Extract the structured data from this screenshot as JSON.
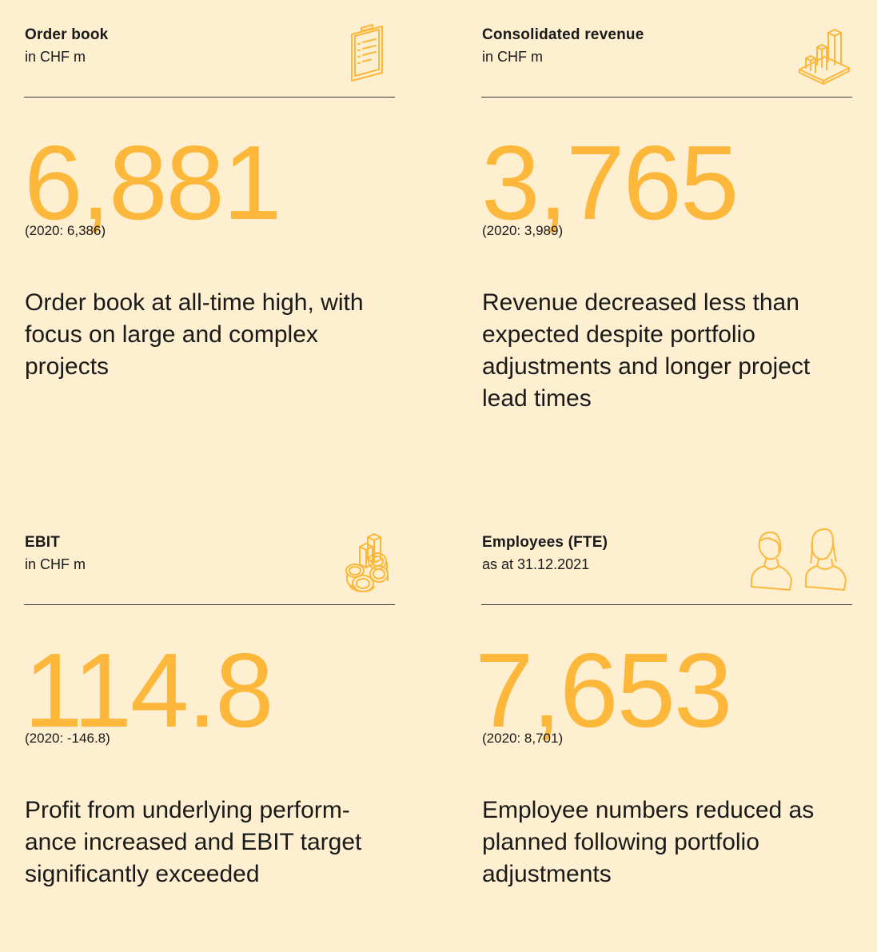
{
  "colors": {
    "background": "#fdefd0",
    "accent": "#fdb73a",
    "text": "#1a1a1a"
  },
  "cards": [
    {
      "title": "Order book",
      "subtitle": "in CHF m",
      "icon": "clipboard-icon",
      "value": "6,881",
      "previous": "(2020: 6,386)",
      "description": "Order book at all-time high, with focus on large and complex projects"
    },
    {
      "title": "Consolidated revenue",
      "subtitle": "in CHF m",
      "icon": "bar-chart-icon",
      "value": "3,765",
      "previous": "(2020: 3,989)",
      "description": "Revenue decreased less than expected despite portfolio adjustments and longer project lead times"
    },
    {
      "title": "EBIT",
      "subtitle": "in CHF m",
      "icon": "coins-icon",
      "value": "114.8",
      "previous": "(2020: -146.8)",
      "description": "Profit from underlying perform-ance increased and EBIT target significantly exceeded"
    },
    {
      "title": "Employees (FTE)",
      "subtitle": "as at 31.12.2021",
      "icon": "people-icon",
      "value": "7,653",
      "previous": "(2020: 8,701)",
      "description": "Employee numbers reduced as planned following portfolio adjustments"
    }
  ]
}
